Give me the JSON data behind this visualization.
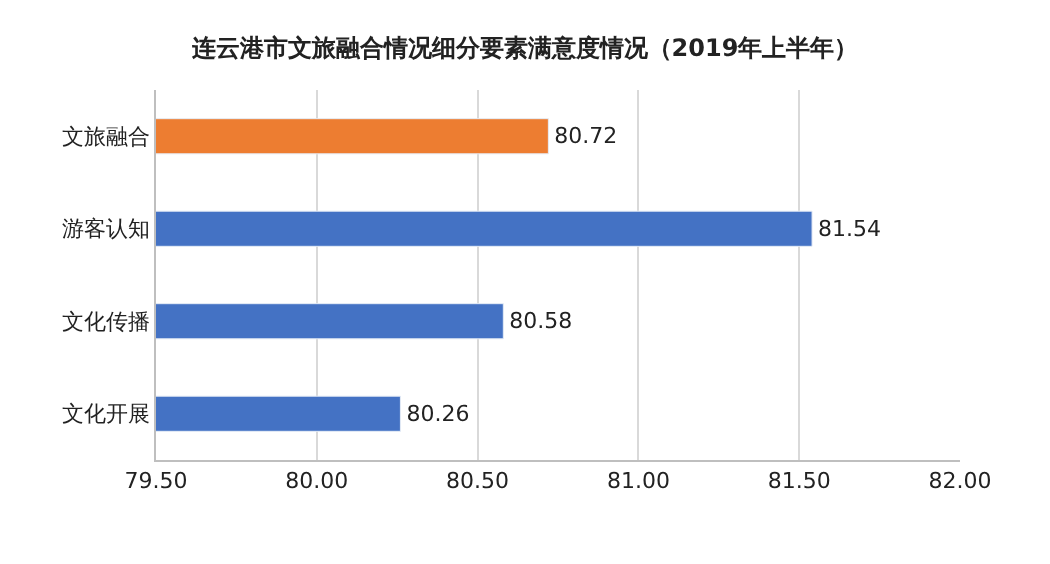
{
  "chart_data": {
    "type": "bar",
    "orientation": "horizontal",
    "title": "连云港市文旅融合情况细分要素满意度情况（2019年上半年）",
    "categories": [
      "文旅融合",
      "游客认知",
      "文化传播",
      "文化开展"
    ],
    "values": [
      80.72,
      81.54,
      80.58,
      80.26
    ],
    "colors": [
      "#ed7d31",
      "#4472c4",
      "#4472c4",
      "#4472c4"
    ],
    "xlim": [
      79.5,
      82
    ],
    "xticks": [
      {
        "value": 79.5,
        "label": "79.50"
      },
      {
        "value": 80,
        "label": "80.00"
      },
      {
        "value": 80.5,
        "label": "80.50"
      },
      {
        "value": 81,
        "label": "81.00"
      },
      {
        "value": 81.5,
        "label": "81.50"
      },
      {
        "value": 82,
        "label": "82.00"
      }
    ],
    "grid": "x",
    "data_labels": true,
    "legend": false
  }
}
